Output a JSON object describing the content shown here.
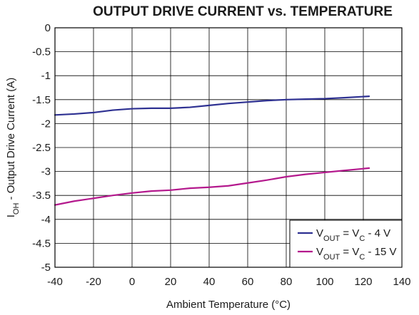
{
  "chart_data": {
    "type": "line",
    "title": "OUTPUT DRIVE CURRENT vs. TEMPERATURE",
    "xlabel": "Ambient Temperature (°C)",
    "ylabel": {
      "prefix": "I",
      "sub": "OH",
      "suffix": " - Output Drive Current (A)"
    },
    "xlim": [
      -40,
      140
    ],
    "ylim": [
      -5,
      0
    ],
    "xticks": [
      -40,
      -20,
      0,
      20,
      40,
      60,
      80,
      100,
      120,
      140
    ],
    "xtick_labels": [
      "-40",
      "-20",
      "0",
      "20",
      "40",
      "60",
      "80",
      "100",
      "120",
      "140"
    ],
    "yticks": [
      0,
      -0.5,
      -1,
      -1.5,
      -2,
      -2.5,
      -3,
      -3.5,
      -4,
      -4.5,
      -5
    ],
    "ytick_labels": [
      "0",
      "-0.5",
      "-1",
      "-1.5",
      "-2",
      "-2.5",
      "-3",
      "-3.5",
      "-4",
      "-4.5",
      "-5"
    ],
    "grid": true,
    "legend_position": "bottom-right",
    "series": [
      {
        "legend_parts": {
          "v1": "V",
          "sub1": "OUT",
          "eq": " = ",
          "v2": "V",
          "sub2": "C",
          "tail": " - 4 V"
        },
        "color": "#2e3192",
        "x": [
          -40,
          -30,
          -20,
          -10,
          0,
          10,
          20,
          30,
          40,
          50,
          60,
          70,
          80,
          90,
          100,
          110,
          123
        ],
        "y": [
          -1.82,
          -1.8,
          -1.77,
          -1.72,
          -1.69,
          -1.68,
          -1.68,
          -1.66,
          -1.62,
          -1.58,
          -1.55,
          -1.52,
          -1.5,
          -1.49,
          -1.48,
          -1.46,
          -1.43
        ]
      },
      {
        "legend_parts": {
          "v1": "V",
          "sub1": "OUT",
          "eq": " = ",
          "v2": "V",
          "sub2": "C",
          "tail": " - 15 V"
        },
        "color": "#b4198d",
        "x": [
          -40,
          -30,
          -20,
          -10,
          0,
          10,
          20,
          30,
          40,
          50,
          60,
          70,
          80,
          90,
          100,
          110,
          123
        ],
        "y": [
          -3.7,
          -3.62,
          -3.56,
          -3.5,
          -3.45,
          -3.41,
          -3.39,
          -3.35,
          -3.33,
          -3.3,
          -3.24,
          -3.18,
          -3.11,
          -3.06,
          -3.02,
          -2.98,
          -2.93
        ]
      }
    ]
  }
}
